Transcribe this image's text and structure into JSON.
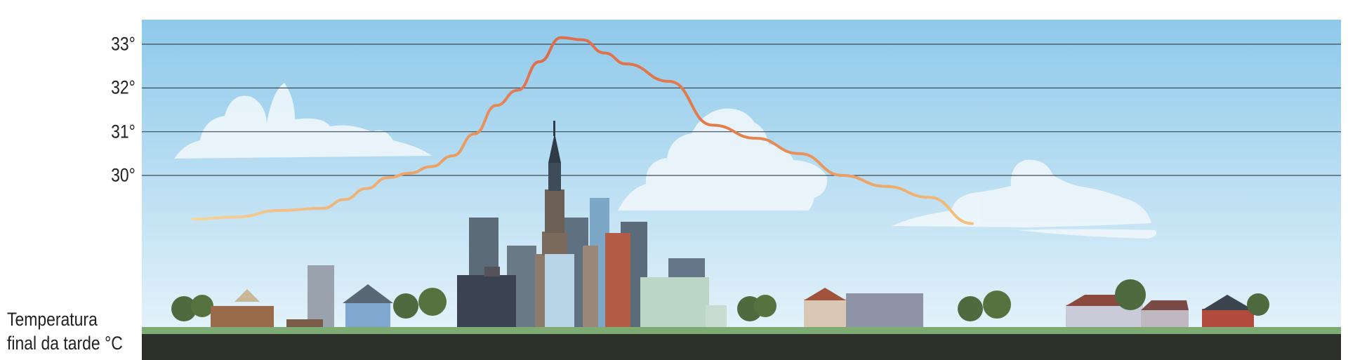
{
  "chart_data": {
    "type": "line",
    "title": "",
    "ylabel": "Temperatura\nfinal da tarde °C",
    "yticks": [
      30,
      31,
      32,
      33
    ],
    "ytick_labels": [
      "30°",
      "31°",
      "32°",
      "33°"
    ],
    "ylim": [
      28.5,
      33.6
    ],
    "grid": true,
    "x": [
      0,
      2,
      4,
      6,
      7,
      8,
      9,
      10,
      11,
      12,
      13,
      14,
      15,
      16,
      17,
      18,
      19,
      20,
      22,
      24,
      26,
      28,
      30,
      32,
      34,
      36
    ],
    "series": [
      {
        "values": [
          29.0,
          29.05,
          29.2,
          29.25,
          29.45,
          29.7,
          29.95,
          30.05,
          30.2,
          30.45,
          30.95,
          31.6,
          31.95,
          32.6,
          33.15,
          33.1,
          32.8,
          32.55,
          32.15,
          31.15,
          30.85,
          30.5,
          30.0,
          29.75,
          29.5,
          28.9
        ],
        "color_start": "#f4c88a",
        "color_peak": "#e4704a"
      }
    ],
    "background": {
      "sky_top": "#8ec9ea",
      "sky_bottom": "#dff0f9",
      "grass": "#7eab74",
      "ground": "#2c3028"
    }
  }
}
